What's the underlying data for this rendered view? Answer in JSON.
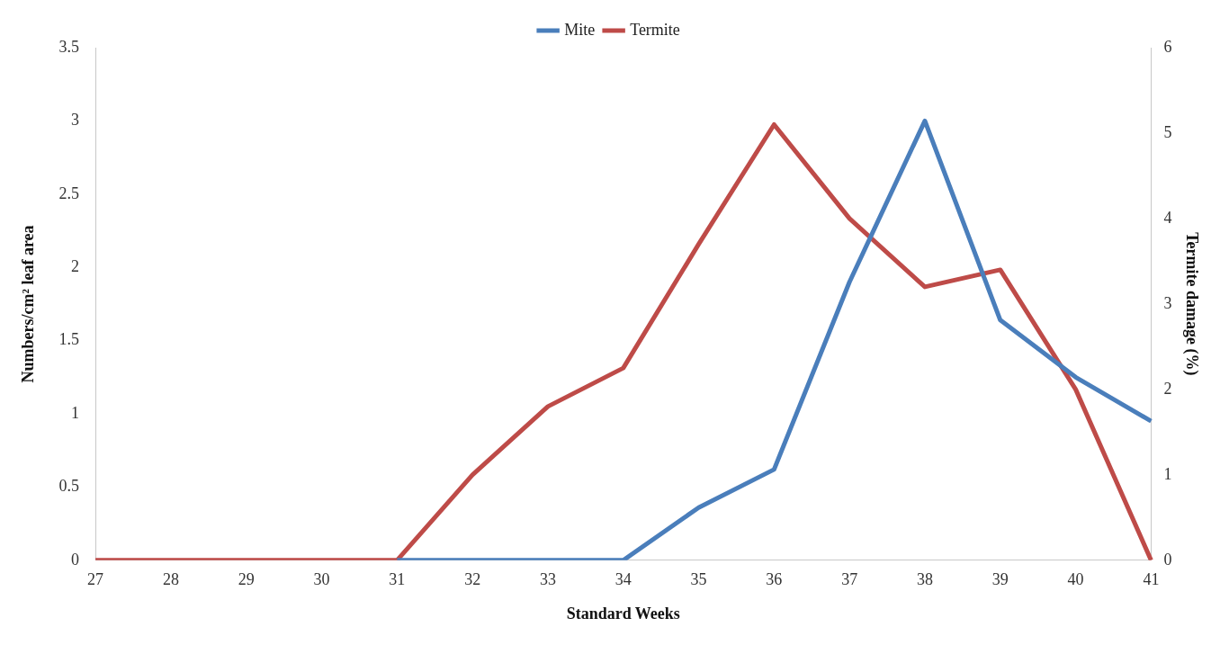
{
  "chart_data": {
    "type": "line",
    "xlabel": "Standard Weeks",
    "ylabel": "Numbers/cm² leaf area",
    "y2label": "Termite damage (%)",
    "categories": [
      "27",
      "28",
      "29",
      "30",
      "31",
      "32",
      "33",
      "34",
      "35",
      "36",
      "37",
      "38",
      "39",
      "40",
      "41"
    ],
    "series": [
      {
        "name": "Mite",
        "color": "#4a7ebb",
        "values": [
          null,
          null,
          null,
          null,
          0,
          0,
          0,
          0,
          0.36,
          0.62,
          1.9,
          3.0,
          1.64,
          1.25,
          0.95
        ]
      },
      {
        "name": "Termite",
        "color": "#be4b48",
        "axis": "y2",
        "values": [
          0,
          0,
          0,
          0,
          0,
          1.0,
          1.8,
          2.25,
          3.7,
          5.1,
          4.0,
          3.2,
          3.4,
          2.0,
          0
        ]
      }
    ],
    "ylim": [
      0,
      3.5
    ],
    "yticks": [
      0,
      0.5,
      1,
      1.5,
      2,
      2.5,
      3,
      3.5
    ],
    "y2lim": [
      0,
      6
    ],
    "y2ticks": [
      0,
      1,
      2,
      3,
      4,
      5,
      6
    ],
    "legend": "top",
    "grid": false,
    "marker": "none",
    "line_style": "solid"
  }
}
